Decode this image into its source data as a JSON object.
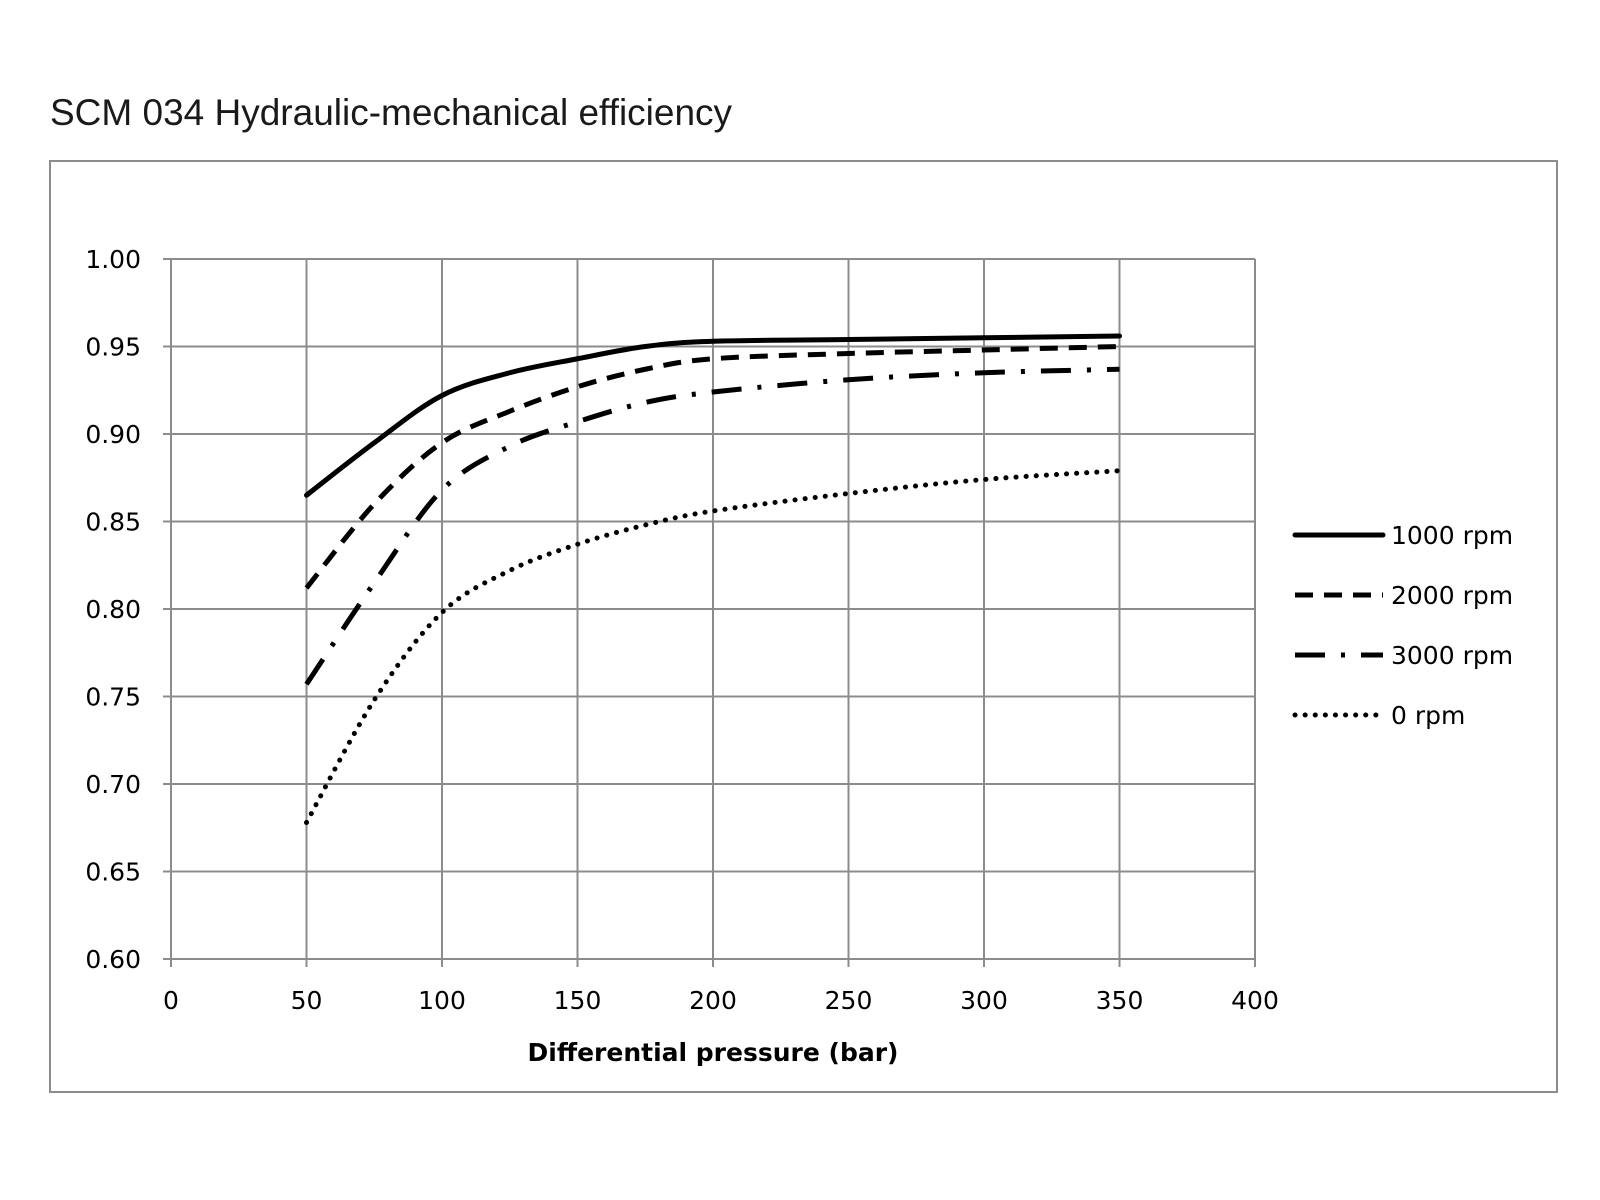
{
  "chart_data": {
    "type": "line",
    "title": "SCM 034 Hydraulic-mechanical efficiency",
    "xlabel": "Differential pressure (bar)",
    "ylabel": "",
    "xlim": [
      0,
      400
    ],
    "ylim": [
      0.6,
      1.0
    ],
    "xticks": [
      "0",
      "50",
      "100",
      "150",
      "200",
      "250",
      "300",
      "350",
      "400"
    ],
    "yticks": [
      "0.60",
      "0.65",
      "0.70",
      "0.75",
      "0.80",
      "0.85",
      "0.90",
      "0.95",
      "1.00"
    ],
    "grid": true,
    "legend_position": "right",
    "series": [
      {
        "name": "1000 rpm",
        "style": "solid",
        "color": "#000000",
        "x": [
          50,
          75,
          100,
          125,
          150,
          175,
          200,
          250,
          300,
          350
        ],
        "y": [
          0.865,
          0.895,
          0.922,
          0.935,
          0.943,
          0.95,
          0.953,
          0.954,
          0.955,
          0.956
        ]
      },
      {
        "name": "2000 rpm",
        "style": "dashed",
        "color": "#000000",
        "x": [
          50,
          75,
          100,
          125,
          150,
          175,
          200,
          250,
          300,
          350
        ],
        "y": [
          0.812,
          0.86,
          0.895,
          0.913,
          0.927,
          0.937,
          0.943,
          0.946,
          0.948,
          0.95
        ]
      },
      {
        "name": "3000 rpm",
        "style": "dashdot",
        "color": "#000000",
        "x": [
          50,
          75,
          100,
          125,
          150,
          175,
          200,
          250,
          300,
          350
        ],
        "y": [
          0.757,
          0.815,
          0.868,
          0.893,
          0.907,
          0.918,
          0.924,
          0.931,
          0.935,
          0.937
        ]
      },
      {
        "name": "0 rpm",
        "style": "dotted",
        "color": "#000000",
        "x": [
          50,
          75,
          100,
          125,
          150,
          175,
          200,
          250,
          300,
          350
        ],
        "y": [
          0.678,
          0.748,
          0.798,
          0.822,
          0.837,
          0.848,
          0.856,
          0.866,
          0.874,
          0.879
        ]
      }
    ]
  }
}
